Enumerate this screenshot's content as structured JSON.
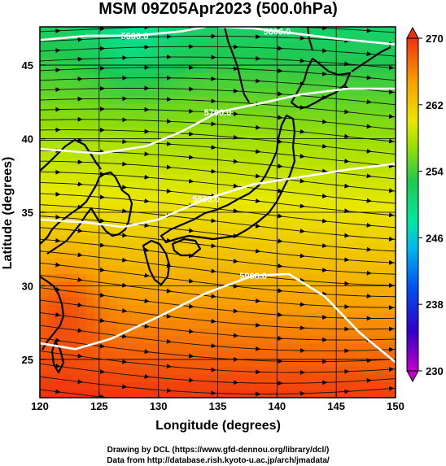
{
  "title": "MSM 09Z05Apr2023 (500.0hPa)",
  "axes": {
    "xlabel": "Longitude (degrees)",
    "ylabel": "Latitude  (degrees)",
    "xlim": [
      120,
      150
    ],
    "ylim": [
      22.4,
      47.6
    ],
    "xticks": [
      "120",
      "125",
      "130",
      "135",
      "140",
      "145",
      "150"
    ],
    "yticks": [
      "25",
      "30",
      "35",
      "40",
      "45"
    ]
  },
  "colorbar": {
    "range": [
      230,
      270
    ],
    "ticks": [
      "230",
      "238",
      "246",
      "254",
      "262",
      "270"
    ]
  },
  "contours": [
    {
      "label": "5500.0",
      "points": [
        [
          120,
          46.7
        ],
        [
          124,
          47.0
        ],
        [
          128,
          47.0
        ],
        [
          132,
          47.3
        ],
        [
          134,
          47.6
        ]
      ]
    },
    {
      "label": "5600.0",
      "points": [
        [
          135,
          47.6
        ],
        [
          138,
          47.5
        ],
        [
          140,
          47.3
        ],
        [
          145,
          46.8
        ],
        [
          150,
          46.4
        ]
      ]
    },
    {
      "label": "5700.0",
      "points": [
        [
          120,
          39.3
        ],
        [
          125,
          39.0
        ],
        [
          129,
          39.5
        ],
        [
          132,
          40.5
        ],
        [
          135,
          41.8
        ],
        [
          138,
          42.3
        ],
        [
          142,
          43.0
        ],
        [
          146,
          43.4
        ],
        [
          150,
          43.4
        ]
      ]
    },
    {
      "label": "5800.0",
      "points": [
        [
          120,
          34.5
        ],
        [
          124,
          34.3
        ],
        [
          127,
          34.0
        ],
        [
          130,
          34.5
        ],
        [
          134,
          35.9
        ],
        [
          138,
          36.9
        ],
        [
          142,
          37.4
        ],
        [
          146,
          37.9
        ],
        [
          150,
          38.3
        ]
      ]
    },
    {
      "label": "5900.0",
      "points": [
        [
          120,
          26.1
        ],
        [
          123,
          25.7
        ],
        [
          126,
          26.4
        ],
        [
          130,
          27.9
        ],
        [
          134,
          29.5
        ],
        [
          138,
          30.7
        ],
        [
          141,
          30.8
        ],
        [
          144,
          29.3
        ],
        [
          147,
          26.8
        ],
        [
          150,
          24.8
        ]
      ]
    }
  ],
  "footer": {
    "line1": "Drawing by DCL (https://www.gfd-dennou.org/library/dcl/)",
    "line2": "Data from http://database.rish.kyoto-u.ac.jp/arch/jmadata/"
  }
}
